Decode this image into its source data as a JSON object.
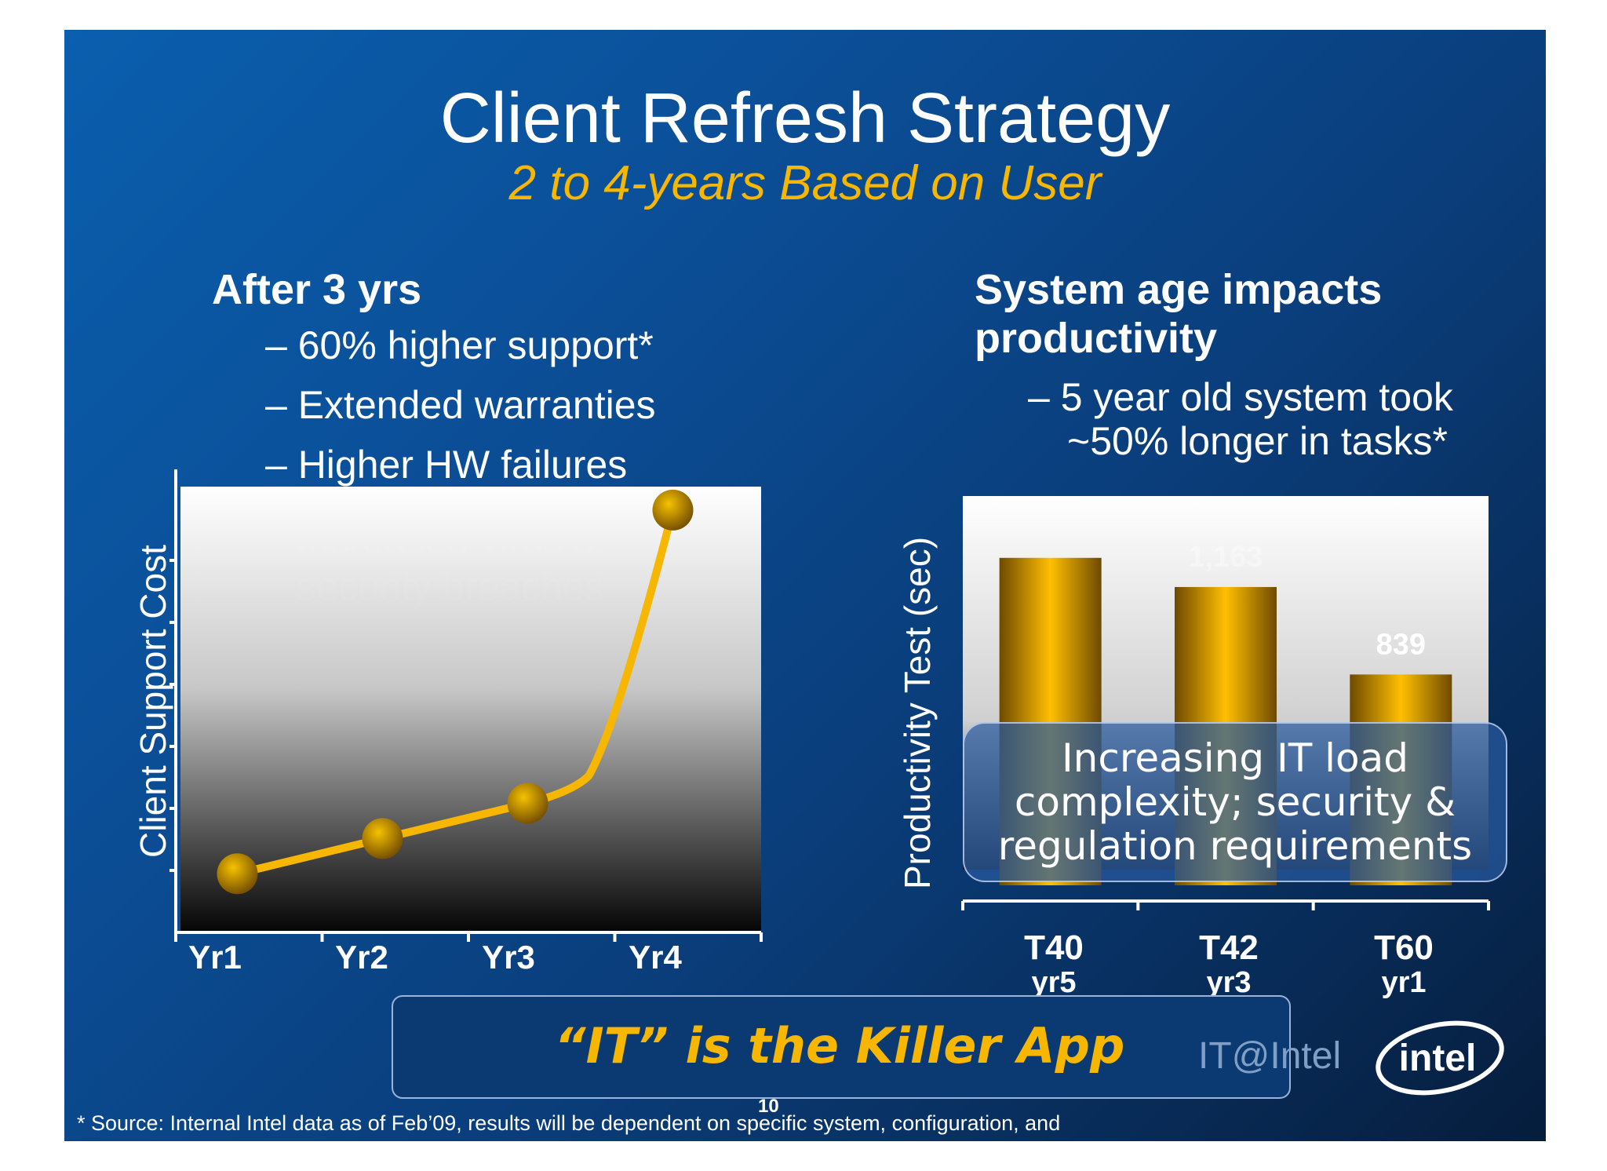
{
  "slide": {
    "title": "Client Refresh Strategy",
    "subtitle": "2 to 4-years Based on User",
    "left": {
      "heading": "After 3 yrs",
      "bullets": [
        "– 60% higher support*",
        "– Extended warranties",
        "– Higher HW failures"
      ],
      "hidden_lines": [
        "Increased virus &",
        "security breaches"
      ]
    },
    "right": {
      "heading_line1": "System age impacts",
      "heading_line2": "productivity",
      "bullet_line1": "– 5 year old system took",
      "bullet_line2": "~50% longer in tasks*"
    },
    "callout": {
      "line1": "Increasing IT load",
      "line2": "complexity; security &",
      "line3": "regulation requirements"
    },
    "banner": "“IT” is the Killer App",
    "brand": "IT@Intel",
    "logo": "intel",
    "footnote": "* Source: Internal Intel data as of Feb’09, results will be dependent on specific system, configuration, and",
    "page_number": "10"
  },
  "colors": {
    "accent": "#f7b700",
    "background": "#0a4a90",
    "marker": "#c98a00"
  },
  "chart_data": [
    {
      "type": "line",
      "ylabel": "Client Support Cost",
      "categories": [
        "Yr1",
        "Yr2",
        "Yr3",
        "Yr4"
      ],
      "series": [
        {
          "values": [
            1.0,
            1.6,
            2.2,
            7.2
          ]
        }
      ],
      "ylim": [
        0,
        7.6
      ],
      "grid": false
    },
    {
      "type": "bar",
      "ylabel": "Productivity Test (sec)",
      "categories": [
        {
          "model": "T40",
          "age": "yr5"
        },
        {
          "model": "T42",
          "age": "yr3"
        },
        {
          "model": "T60",
          "age": "yr1"
        }
      ],
      "values": [
        1271,
        1163,
        839
      ],
      "value_labels": [
        "",
        "1,163",
        "839"
      ],
      "ylim": [
        0,
        1500
      ]
    }
  ]
}
